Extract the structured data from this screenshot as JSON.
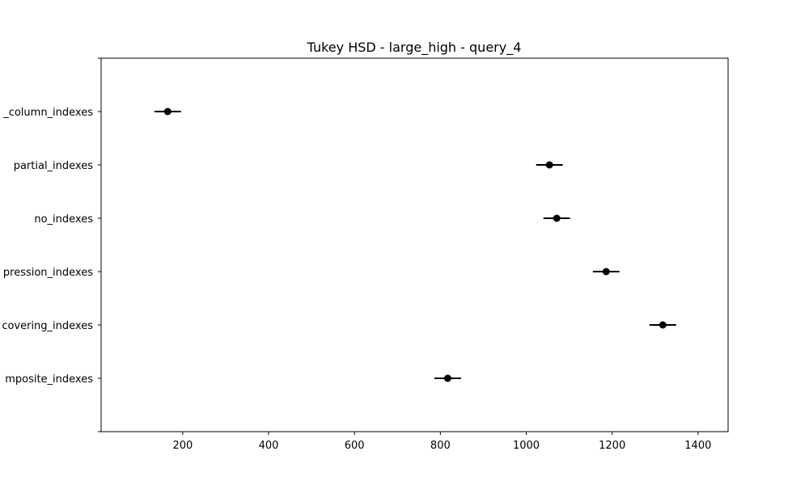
{
  "chart_data": {
    "type": "scatter",
    "title": "Tukey HSD - large_high - query_4",
    "xlabel": "",
    "ylabel": "",
    "xlim": [
      10,
      1470
    ],
    "x_ticks": [
      200,
      400,
      600,
      800,
      1000,
      1200,
      1400
    ],
    "grid": false,
    "categories": [
      "multi_column_indexes",
      "partial_indexes",
      "no_indexes",
      "expression_indexes",
      "covering_indexes",
      "composite_indexes"
    ],
    "category_labels_visible": [
      "_column_indexes",
      "partial_indexes",
      "no_indexes",
      "pression_indexes",
      "covering_indexes",
      "mposite_indexes"
    ],
    "means": [
      165,
      1054,
      1071,
      1186,
      1318,
      817
    ],
    "ci_low": [
      134,
      1023,
      1040,
      1155,
      1287,
      786
    ],
    "ci_high": [
      196,
      1085,
      1102,
      1217,
      1349,
      848
    ],
    "colors": {
      "marker": "#000000",
      "axes": "#000000"
    }
  }
}
